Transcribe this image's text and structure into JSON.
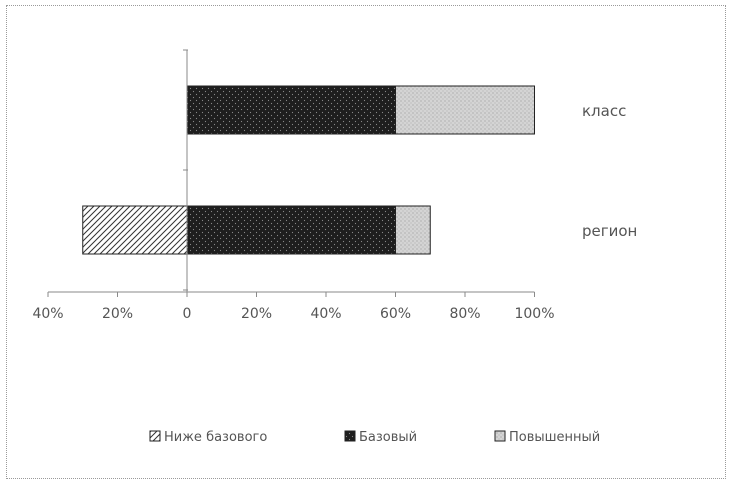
{
  "chart_data": {
    "type": "bar",
    "orientation": "horizontal",
    "stacked": true,
    "categories": [
      "класс",
      "регион"
    ],
    "series": [
      {
        "name": "Ниже базового",
        "values": [
          0,
          -30
        ],
        "pattern": "hatch"
      },
      {
        "name": "Базовый",
        "values": [
          60,
          60
        ],
        "pattern": "dark-dots"
      },
      {
        "name": "Повышенный",
        "values": [
          40,
          10
        ],
        "pattern": "light-dots"
      }
    ],
    "x_ticks": [
      "40%",
      "20%",
      "0",
      "20%",
      "40%",
      "60%",
      "80%",
      "100%"
    ],
    "xlim": [
      -40,
      100
    ],
    "grid": false,
    "legend_position": "bottom"
  }
}
